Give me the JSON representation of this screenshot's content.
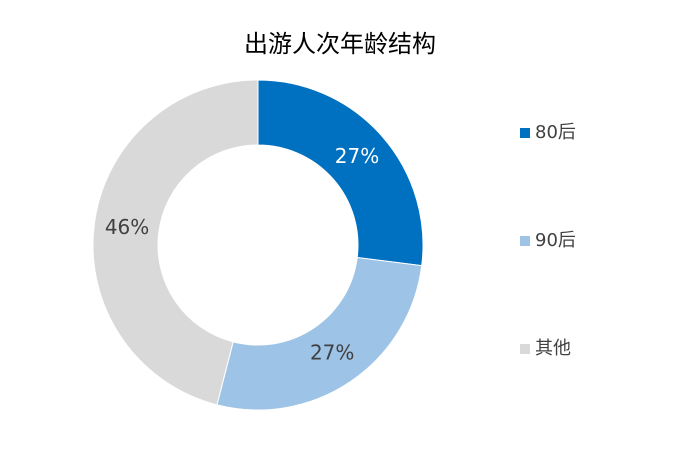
{
  "chart_data": {
    "type": "donut",
    "title": "出游人次年龄结构",
    "categories": [
      "80后",
      "90后",
      "其他"
    ],
    "values": [
      27,
      27,
      46
    ],
    "value_labels": [
      "27%",
      "27%",
      "46%"
    ],
    "colors": [
      "#0070c0",
      "#9dc3e6",
      "#d9d9d9"
    ],
    "label_colors": [
      "#ffffff",
      "#404040",
      "#404040"
    ],
    "legend": "right"
  }
}
